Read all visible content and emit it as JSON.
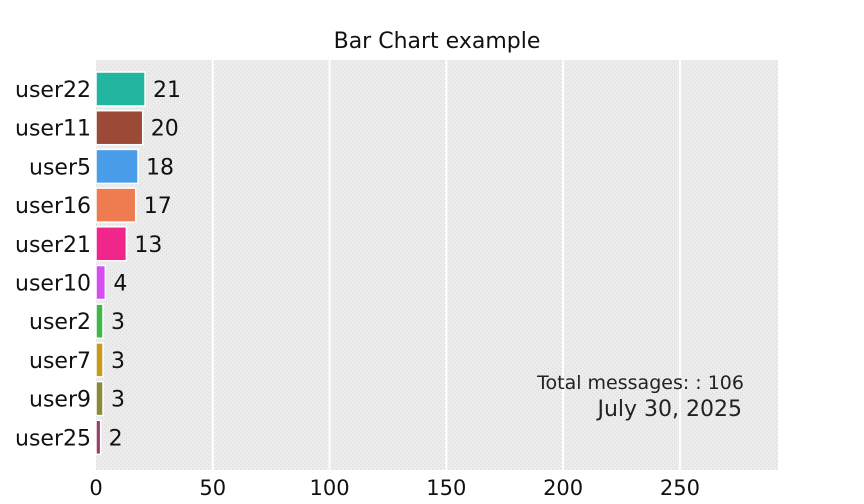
{
  "chart_data": {
    "type": "bar",
    "orientation": "horizontal",
    "title": "Bar Chart example",
    "xlabel": "",
    "ylabel": "",
    "xlim": [
      0,
      292
    ],
    "xticks": [
      0,
      50,
      100,
      150,
      200,
      250
    ],
    "grid": true,
    "categories": [
      "user22",
      "user11",
      "user5",
      "user16",
      "user21",
      "user10",
      "user2",
      "user7",
      "user9",
      "user25"
    ],
    "values": [
      21,
      20,
      18,
      17,
      13,
      4,
      3,
      3,
      3,
      2
    ],
    "colors": [
      "#22b5a0",
      "#9b4a38",
      "#4a9de8",
      "#ee7c50",
      "#f0268a",
      "#d44ff0",
      "#3fb84a",
      "#c79a1e",
      "#8a8a3a",
      "#9a3f6a"
    ],
    "annotations": {
      "total": "Total messages: : 106",
      "date": "July 30, 2025"
    }
  }
}
